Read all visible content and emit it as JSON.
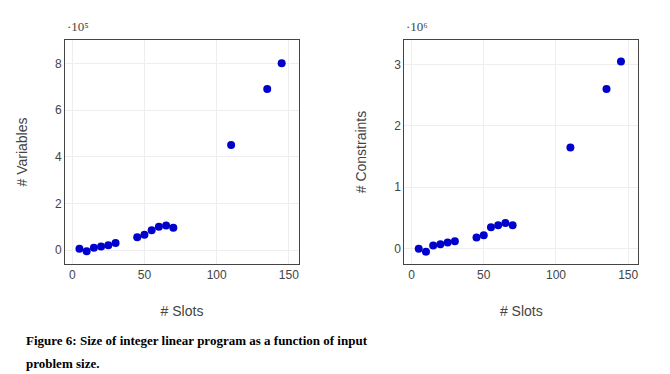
{
  "chart_data": [
    {
      "type": "scatter",
      "x_label": "# Slots",
      "y_label": "# Variables",
      "x": [
        5,
        10,
        15,
        20,
        25,
        30,
        45,
        50,
        55,
        60,
        65,
        70,
        110,
        135,
        145
      ],
      "values": [
        0.05,
        -0.05,
        0.1,
        0.15,
        0.2,
        0.3,
        0.55,
        0.65,
        0.85,
        1.0,
        1.05,
        0.95,
        4.5,
        6.9,
        8.0
      ],
      "xlim": [
        -5,
        157
      ],
      "xticks": [
        0,
        50,
        100,
        150
      ],
      "ylim": [
        -0.6,
        9.0
      ],
      "yticks": [
        0,
        2,
        4,
        6,
        8
      ],
      "annotations": [
        "·10⁵"
      ],
      "color": "#0000CC",
      "marker": "circle",
      "grid": true
    },
    {
      "type": "scatter",
      "x_label": "# Slots",
      "y_label": "# Constraints",
      "x": [
        5,
        10,
        15,
        20,
        25,
        30,
        45,
        50,
        55,
        60,
        65,
        70,
        110,
        135,
        145
      ],
      "values": [
        0.0,
        -0.05,
        0.05,
        0.07,
        0.1,
        0.12,
        0.18,
        0.22,
        0.35,
        0.38,
        0.42,
        0.38,
        1.65,
        2.6,
        3.05
      ],
      "xlim": [
        -5,
        157
      ],
      "xticks": [
        0,
        50,
        100,
        150
      ],
      "ylim": [
        -0.25,
        3.4
      ],
      "yticks": [
        0,
        1,
        2,
        3
      ],
      "annotations": [
        "·10⁶"
      ],
      "color": "#0000CC",
      "marker": "circle",
      "grid": true
    }
  ],
  "caption": [
    "Figure 6: Size of integer linear program as a function of input",
    "problem size."
  ]
}
